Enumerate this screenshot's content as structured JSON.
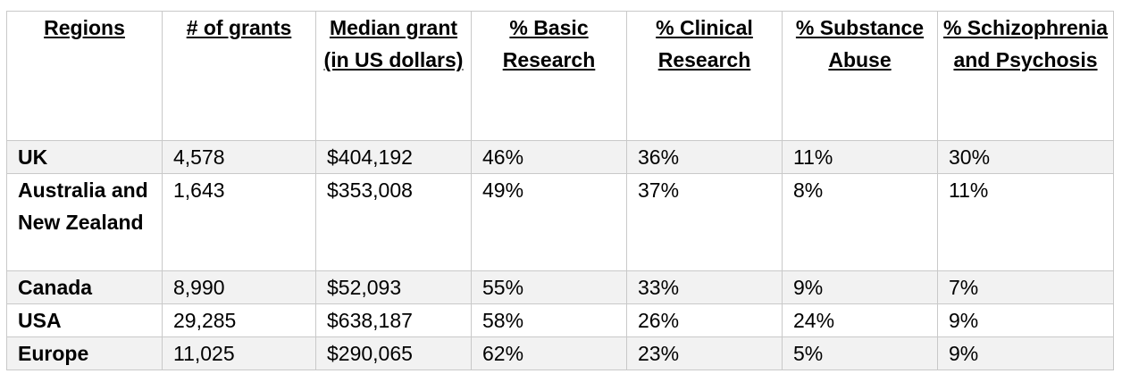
{
  "table": {
    "headers": [
      "Regions",
      "# of grants",
      "Median grant (in US dollars)",
      "% Basic Research",
      "% Clinical Research",
      "% Substance Abuse",
      "% Schizophrenia and Psychosis"
    ],
    "rows": [
      [
        "UK",
        "4,578",
        "$404,192",
        "46%",
        "36%",
        "11%",
        "30%"
      ],
      [
        "Australia and New Zealand",
        "1,643",
        "$353,008",
        "49%",
        "37%",
        "8%",
        "11%"
      ],
      [
        "Canada",
        "8,990",
        "$52,093",
        "55%",
        "33%",
        "9%",
        "7%"
      ],
      [
        "USA",
        "29,285",
        "$638,187",
        "58%",
        "26%",
        "24%",
        "9%"
      ],
      [
        "Europe",
        "11,025",
        "$290,065",
        "62%",
        "23%",
        "5%",
        "9%"
      ]
    ],
    "shaded_row_color": "#f2f2f2",
    "border_color": "#c9c9c9"
  }
}
